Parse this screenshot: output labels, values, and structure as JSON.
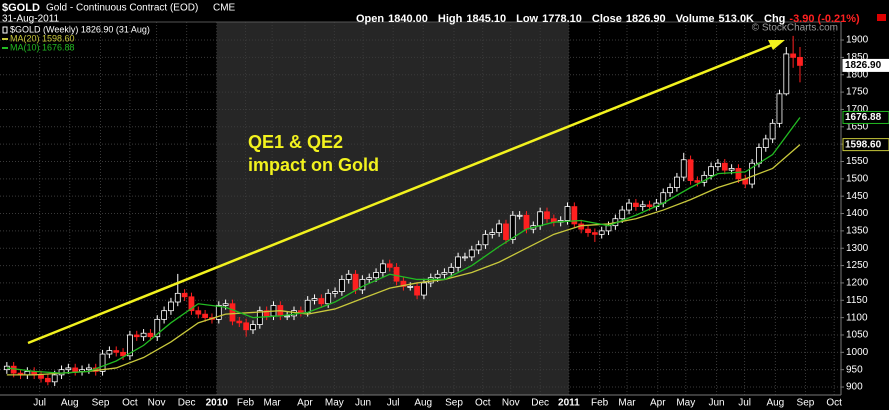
{
  "chart_data": {
    "type": "candlestick",
    "symbol": "$GOLD",
    "title": "Gold - Continuous Contract (EOD)",
    "exchange": "CME",
    "date": "31-Aug-2011",
    "credit": "© StockCharts.com",
    "stats": [
      {
        "name": "Open",
        "value": "1840.00"
      },
      {
        "name": "High",
        "value": "1845.10"
      },
      {
        "name": "Low",
        "value": "1778.10"
      },
      {
        "name": "Close",
        "value": "1826.90"
      },
      {
        "name": "Volume",
        "value": "513.0K"
      },
      {
        "name": "Chg",
        "value": "-3.90 (-0.21%)"
      }
    ],
    "annotation": [
      "QE1 & QE2",
      "impact on Gold"
    ],
    "up_color": "#ffffff",
    "down_color": "#ff2020",
    "shade_color": "#262626",
    "shaded_range": [
      30.7,
      82.2
    ],
    "grid": true,
    "xlim": [
      -1,
      122
    ],
    "ylim": [
      877,
      1952
    ],
    "yticks": [
      900,
      950,
      1000,
      1050,
      1100,
      1150,
      1200,
      1250,
      1300,
      1350,
      1400,
      1450,
      1500,
      1550,
      1600,
      1650,
      1700,
      1750,
      1800,
      1850,
      1900
    ],
    "xticks": [
      {
        "value": 4.8,
        "label": "Jul"
      },
      {
        "value": 9.2,
        "label": "Aug"
      },
      {
        "value": 13.7,
        "label": "Sep"
      },
      {
        "value": 18,
        "label": "Oct"
      },
      {
        "value": 21.9,
        "label": "Nov"
      },
      {
        "value": 26.3,
        "label": "Dec"
      },
      {
        "value": 30.7,
        "label": "2010"
      },
      {
        "value": 34.9,
        "label": "Feb"
      },
      {
        "value": 38.8,
        "label": "Mar"
      },
      {
        "value": 43.6,
        "label": "Apr"
      },
      {
        "value": 47.9,
        "label": "May"
      },
      {
        "value": 52.1,
        "label": "Jun"
      },
      {
        "value": 56.5,
        "label": "Jul"
      },
      {
        "value": 60.9,
        "label": "Aug"
      },
      {
        "value": 65.4,
        "label": "Sep"
      },
      {
        "value": 69.6,
        "label": "Oct"
      },
      {
        "value": 73.7,
        "label": "Nov"
      },
      {
        "value": 78,
        "label": "Dec"
      },
      {
        "value": 82.2,
        "label": "2011"
      },
      {
        "value": 86.7,
        "label": "Feb"
      },
      {
        "value": 90.7,
        "label": "Mar"
      },
      {
        "value": 95.2,
        "label": "Apr"
      },
      {
        "value": 99.3,
        "label": "May"
      },
      {
        "value": 103.8,
        "label": "Jun"
      },
      {
        "value": 107.9,
        "label": "Jul"
      },
      {
        "value": 112.4,
        "label": "Aug"
      },
      {
        "value": 116.8,
        "label": "Sep"
      },
      {
        "value": 121,
        "label": "Oct"
      }
    ],
    "y_markers": [
      {
        "value": 1826.9,
        "label": "1826.90",
        "color": "#ffffff"
      },
      {
        "value": 1676.88,
        "label": "1676.88",
        "color": "#22bb22"
      },
      {
        "value": 1598.6,
        "label": "1598.60",
        "color": "#c8c83c"
      }
    ],
    "series": [
      {
        "name": "$GOLD (Weekly) 1826.90 (31 Aug)",
        "open": [
          950,
          960,
          940,
          935,
          945,
          935,
          925,
          915,
          935,
          950,
          955,
          945,
          950,
          955,
          945,
          995,
          1005,
          1000,
          990,
          1050,
          1045,
          1055,
          1045,
          1095,
          1120,
          1145,
          1170,
          1160,
          1120,
          1110,
          1100,
          1095,
          1135,
          1140,
          1090,
          1085,
          1065,
          1080,
          1120,
          1105,
          1135,
          1105,
          1105,
          1120,
          1115,
          1150,
          1155,
          1140,
          1170,
          1175,
          1210,
          1225,
          1180,
          1210,
          1215,
          1230,
          1255,
          1245,
          1205,
          1190,
          1190,
          1165,
          1200,
          1215,
          1225,
          1230,
          1245,
          1275,
          1275,
          1295,
          1310,
          1340,
          1345,
          1370,
          1325,
          1395,
          1395,
          1355,
          1365,
          1405,
          1385,
          1375,
          1380,
          1420,
          1370,
          1355,
          1345,
          1340,
          1350,
          1365,
          1385,
          1410,
          1430,
          1420,
          1425,
          1420,
          1430,
          1460,
          1475,
          1505,
          1555,
          1495,
          1490,
          1510,
          1535,
          1545,
          1525,
          1530,
          1500,
          1485,
          1545,
          1590,
          1615,
          1660,
          1745,
          1860,
          1850
        ],
        "high": [
          972,
          972,
          952,
          957,
          957,
          947,
          937,
          947,
          962,
          967,
          967,
          962,
          967,
          967,
          1007,
          1017,
          1017,
          1012,
          1062,
          1062,
          1067,
          1067,
          1107,
          1132,
          1157,
          1226,
          1182,
          1172,
          1132,
          1122,
          1112,
          1147,
          1152,
          1152,
          1102,
          1097,
          1092,
          1132,
          1132,
          1147,
          1147,
          1117,
          1132,
          1132,
          1162,
          1167,
          1167,
          1182,
          1187,
          1222,
          1237,
          1237,
          1222,
          1227,
          1242,
          1267,
          1267,
          1257,
          1217,
          1202,
          1202,
          1212,
          1227,
          1237,
          1242,
          1257,
          1287,
          1287,
          1307,
          1322,
          1352,
          1357,
          1382,
          1382,
          1407,
          1407,
          1407,
          1377,
          1417,
          1417,
          1397,
          1392,
          1432,
          1432,
          1382,
          1367,
          1357,
          1362,
          1377,
          1397,
          1422,
          1442,
          1442,
          1437,
          1437,
          1442,
          1472,
          1487,
          1517,
          1575,
          1567,
          1507,
          1522,
          1547,
          1557,
          1557,
          1542,
          1542,
          1512,
          1557,
          1602,
          1627,
          1672,
          1757,
          1880,
          1912,
          1880
        ],
        "low": [
          938,
          928,
          923,
          923,
          923,
          913,
          905,
          903,
          923,
          938,
          933,
          933,
          938,
          933,
          933,
          983,
          988,
          978,
          978,
          1033,
          1033,
          1033,
          1033,
          1083,
          1108,
          1133,
          1148,
          1108,
          1098,
          1088,
          1083,
          1083,
          1123,
          1078,
          1073,
          1045,
          1053,
          1068,
          1093,
          1093,
          1093,
          1093,
          1093,
          1103,
          1103,
          1138,
          1128,
          1128,
          1158,
          1163,
          1198,
          1168,
          1168,
          1198,
          1203,
          1218,
          1233,
          1193,
          1178,
          1178,
          1153,
          1153,
          1188,
          1203,
          1213,
          1218,
          1233,
          1263,
          1263,
          1283,
          1298,
          1328,
          1333,
          1313,
          1313,
          1383,
          1343,
          1343,
          1353,
          1373,
          1363,
          1363,
          1368,
          1358,
          1343,
          1333,
          1318,
          1328,
          1338,
          1353,
          1373,
          1398,
          1408,
          1408,
          1408,
          1408,
          1418,
          1448,
          1463,
          1493,
          1483,
          1478,
          1478,
          1498,
          1523,
          1513,
          1513,
          1488,
          1473,
          1473,
          1533,
          1578,
          1603,
          1648,
          1740,
          1820,
          1778.1
        ],
        "close": [
          960,
          940,
          935,
          945,
          935,
          925,
          915,
          935,
          950,
          955,
          945,
          950,
          955,
          945,
          995,
          1005,
          1000,
          990,
          1050,
          1045,
          1055,
          1045,
          1095,
          1120,
          1145,
          1170,
          1160,
          1120,
          1110,
          1100,
          1095,
          1135,
          1140,
          1090,
          1085,
          1065,
          1080,
          1120,
          1105,
          1135,
          1105,
          1105,
          1120,
          1115,
          1150,
          1155,
          1140,
          1170,
          1175,
          1210,
          1225,
          1180,
          1210,
          1215,
          1230,
          1255,
          1245,
          1205,
          1190,
          1190,
          1165,
          1200,
          1215,
          1225,
          1230,
          1245,
          1275,
          1275,
          1295,
          1310,
          1340,
          1345,
          1370,
          1325,
          1395,
          1395,
          1355,
          1365,
          1405,
          1385,
          1375,
          1380,
          1420,
          1370,
          1355,
          1345,
          1340,
          1350,
          1365,
          1385,
          1410,
          1430,
          1420,
          1425,
          1420,
          1430,
          1460,
          1475,
          1505,
          1555,
          1495,
          1490,
          1510,
          1535,
          1545,
          1525,
          1530,
          1500,
          1485,
          1545,
          1590,
          1615,
          1660,
          1745,
          1860,
          1850,
          1826.9
        ]
      },
      {
        "name": "MA(20) 1598.60",
        "color": "#c8c83c",
        "x": [
          0,
          4,
          8,
          12,
          16,
          20,
          24,
          28,
          32,
          36,
          40,
          44,
          48,
          52,
          56,
          60,
          64,
          68,
          72,
          76,
          80,
          84,
          88,
          92,
          96,
          100,
          104,
          108,
          112,
          116
        ],
        "values": [
          935,
          935,
          940,
          945,
          955,
          985,
          1030,
          1085,
          1110,
          1115,
          1120,
          1110,
          1125,
          1155,
          1185,
          1200,
          1210,
          1230,
          1260,
          1300,
          1340,
          1365,
          1370,
          1385,
          1410,
          1440,
          1475,
          1500,
          1530,
          1598.6
        ]
      },
      {
        "name": "MA(10) 1676.88",
        "color": "#22bb22",
        "x": [
          0,
          4,
          8,
          12,
          16,
          20,
          24,
          28,
          32,
          36,
          40,
          44,
          48,
          52,
          56,
          60,
          64,
          68,
          72,
          76,
          80,
          84,
          88,
          92,
          96,
          100,
          104,
          108,
          112,
          116
        ],
        "values": [
          955,
          945,
          940,
          945,
          975,
          1020,
          1085,
          1140,
          1130,
          1100,
          1105,
          1115,
          1145,
          1190,
          1225,
          1210,
          1210,
          1250,
          1305,
          1355,
          1375,
          1380,
          1365,
          1395,
          1430,
          1475,
          1515,
          1520,
          1570,
          1676.88
        ]
      }
    ]
  }
}
